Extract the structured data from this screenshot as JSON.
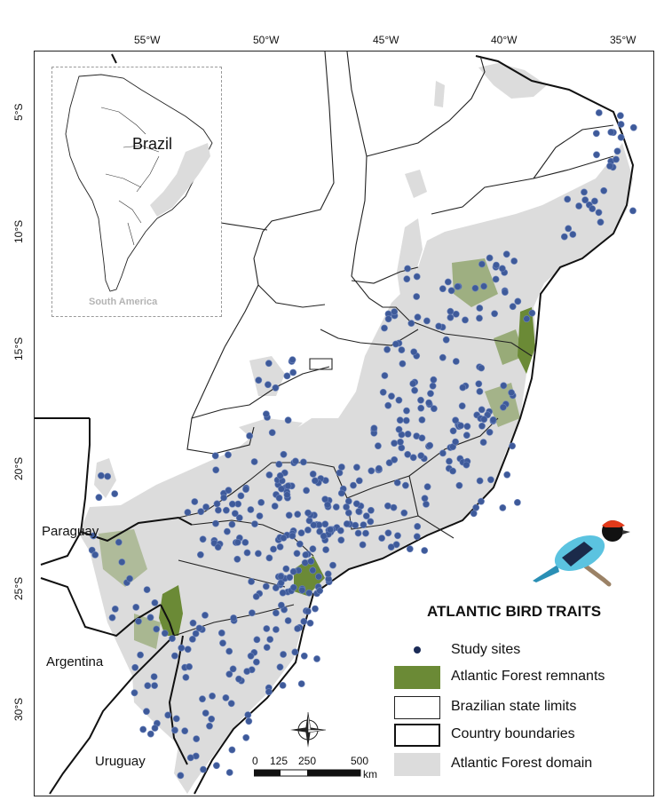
{
  "map": {
    "title": "ATLANTIC BIRD TRAITS",
    "lon_ticks": [
      "55°W",
      "50°W",
      "45°W",
      "40°W",
      "35°W"
    ],
    "lat_ticks": [
      "5°S",
      "10°S",
      "15°S",
      "20°S",
      "25°S",
      "30°S"
    ],
    "country_labels": [
      "Paraguay",
      "Argentina",
      "Uruguay"
    ],
    "colors": {
      "remnants": "#6b8a36",
      "domain": "#dcdcdc",
      "sites": "#3e5a9a",
      "sites_legend": "#1b2b57"
    }
  },
  "inset": {
    "title": "Brazil",
    "caption": "South America"
  },
  "legend": {
    "items": [
      {
        "label": "Study sites",
        "symbol": "dot"
      },
      {
        "label": "Atlantic Forest remnants",
        "symbol": "green-fill"
      },
      {
        "label": "Brazilian state limits",
        "symbol": "thin-box"
      },
      {
        "label": "Country boundaries",
        "symbol": "thick-box"
      },
      {
        "label": "Atlantic Forest domain",
        "symbol": "grey-fill"
      }
    ]
  },
  "scale_bar": {
    "labels": [
      "0",
      "125",
      "250",
      "500"
    ],
    "unit": "km"
  },
  "illustration": {
    "subject": "bird-illustration"
  }
}
